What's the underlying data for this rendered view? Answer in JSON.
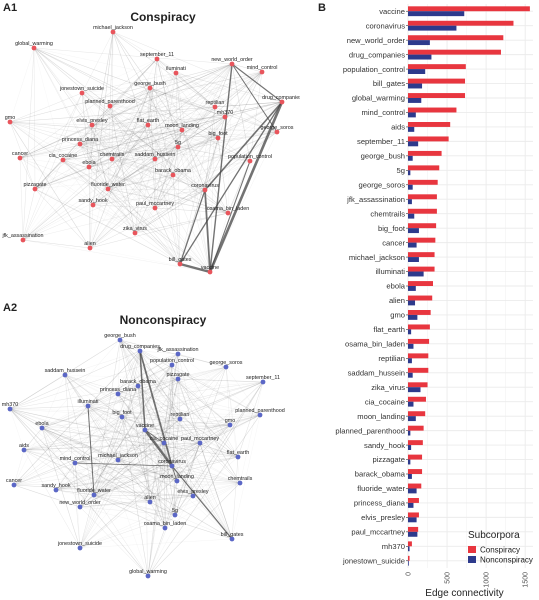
{
  "panels": {
    "a1_letter": "A1",
    "a2_letter": "A2",
    "b_letter": "B",
    "a1_title": "Conspiracy",
    "a2_title": "Nonconspiracy"
  },
  "colors": {
    "conspiracy": "#e8363f",
    "nonconspiracy": "#2d3a8c",
    "node_a1": "#e8555c",
    "node_a2": "#5b67c6",
    "edge": "#555555",
    "grid": "#ebebeb"
  },
  "network_a1": {
    "nodes": [
      "michael_jackson",
      "global_warming",
      "september_11",
      "new_world_order",
      "mind_control",
      "iluminati",
      "jonestown_suicide",
      "george_bush",
      "drug_companies",
      "planned_parenthood",
      "reptilian",
      "gmo",
      "elvis_presley",
      "flat_earth",
      "mh370",
      "moon_landing",
      "big_foot",
      "george_soros",
      "princess_diana",
      "chemtrails",
      "5g",
      "population_control",
      "cancer",
      "cia_cocaine",
      "saddam_hussein",
      "ebola",
      "barack_obama",
      "fluoride_water",
      "pizzagate",
      "sandy_hook",
      "paul_mccartney",
      "coronavirus",
      "osama_bin_laden",
      "jfk_assassination",
      "zika_virus",
      "alien",
      "bill_gates",
      "vaccine"
    ]
  },
  "network_a2": {
    "nodes": [
      "george_bush",
      "drug_companies",
      "jfk_assassination",
      "population_control",
      "george_soros",
      "saddam_hussein",
      "pizzagate",
      "september_11",
      "barack_obama",
      "princess_diana",
      "mh370",
      "illuminati",
      "planned_parenthood",
      "big_foot",
      "reptilian",
      "gmo",
      "ebola",
      "vaccine",
      "cia_cocaine",
      "paul_mccartney",
      "aids",
      "michael_jackson",
      "flat_earth",
      "mind_control",
      "coronavirus",
      "moon_landing",
      "chemtrails",
      "cancer",
      "sandy_hook",
      "fluoride_water",
      "elvis_presley",
      "alien",
      "new_world_order",
      "5g",
      "osama_bin_laden",
      "bill_gates",
      "jonestown_suicide",
      "global_warming"
    ]
  },
  "chart_data": {
    "type": "bar",
    "orientation": "horizontal",
    "xlabel": "Edge connectivity",
    "xlim": [
      0,
      1600
    ],
    "xticks": [
      0,
      500,
      1000,
      1500
    ],
    "grid": true,
    "legend_title": "Subcorpora",
    "legend_position": "bottom-right",
    "categories": [
      "vaccine",
      "coronavirus",
      "new_world_order",
      "drug_companies",
      "population_control",
      "bill_gates",
      "global_warming",
      "mind_control",
      "aids",
      "september_11",
      "george_bush",
      "5g",
      "george_soros",
      "jfk_assassination",
      "chemtrails",
      "big_foot",
      "cancer",
      "michael_jackson",
      "illuminati",
      "ebola",
      "alien",
      "gmo",
      "flat_earth",
      "osama_bin_laden",
      "reptilian",
      "saddam_hussein",
      "zika_virus",
      "cia_cocaine",
      "moon_landing",
      "planned_parenthood",
      "sandy_hook",
      "pizzagate",
      "barack_obama",
      "fluoride_water",
      "princess_diana",
      "elvis_presley",
      "paul_mccartney",
      "mh370",
      "jonestown_suicide"
    ],
    "series": [
      {
        "name": "Conspiracy",
        "values": [
          1560,
          1350,
          1220,
          1190,
          740,
          730,
          730,
          620,
          540,
          520,
          430,
          400,
          380,
          370,
          370,
          360,
          350,
          340,
          340,
          320,
          310,
          290,
          280,
          270,
          260,
          260,
          250,
          230,
          220,
          200,
          190,
          180,
          180,
          170,
          140,
          140,
          130,
          50,
          20
        ]
      },
      {
        "name": "Nonconspiracy",
        "values": [
          720,
          620,
          280,
          300,
          220,
          180,
          170,
          100,
          80,
          130,
          60,
          30,
          60,
          50,
          80,
          140,
          110,
          140,
          200,
          100,
          90,
          120,
          40,
          70,
          50,
          60,
          160,
          70,
          100,
          30,
          40,
          30,
          50,
          110,
          70,
          110,
          120,
          20,
          10
        ]
      }
    ]
  }
}
